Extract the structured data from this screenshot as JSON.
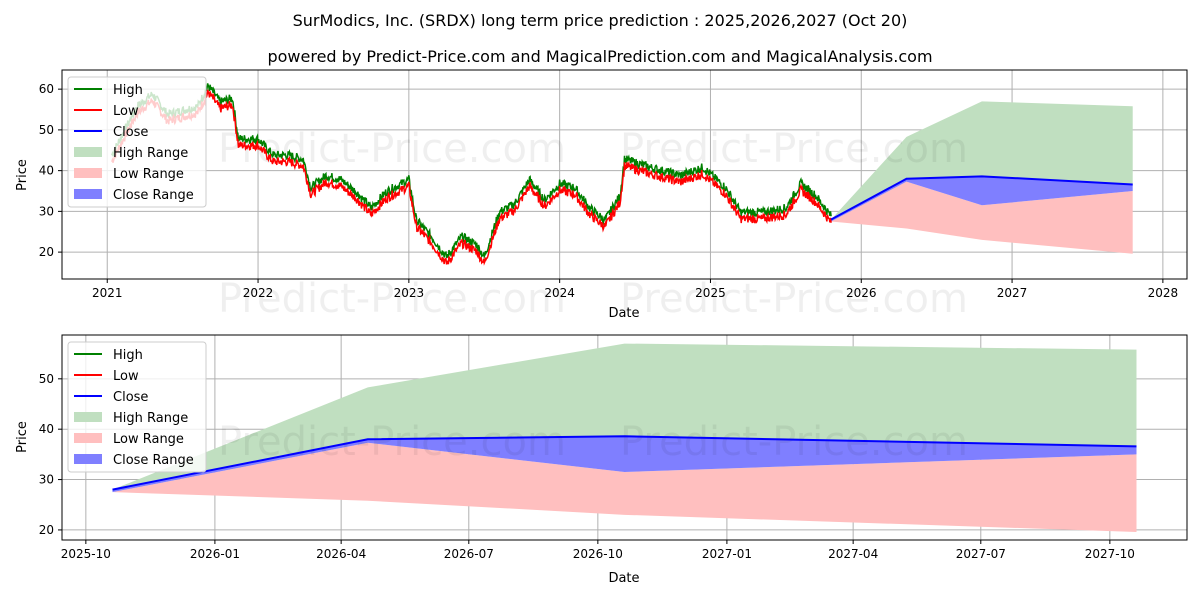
{
  "title": "SurModics, Inc. (SRDX) long term price prediction : 2025,2026,2027 (Oct 20)",
  "subtitle": "powered by Predict-Price.com and MagicalPrediction.com and MagicalAnalysis.com",
  "watermark": "Predict-Price.com",
  "colors": {
    "high": "#008000",
    "low": "#ff0000",
    "close": "#0000ff",
    "high_range": "#c0dfc0",
    "low_range": "#ffbfbf",
    "close_range": "#7f7fff"
  },
  "chart_data": [
    {
      "type": "line",
      "xlabel": "Date",
      "ylabel": "Price",
      "xlim": [
        2020.7,
        2028.16
      ],
      "ylim": [
        13.4,
        64.7
      ],
      "grid": true,
      "legend_position": "top-left",
      "xticks": [
        {
          "v": 2021,
          "label": "2021"
        },
        {
          "v": 2022,
          "label": "2022"
        },
        {
          "v": 2023,
          "label": "2023"
        },
        {
          "v": 2024,
          "label": "2024"
        },
        {
          "v": 2025,
          "label": "2025"
        },
        {
          "v": 2026,
          "label": "2026"
        },
        {
          "v": 2027,
          "label": "2027"
        },
        {
          "v": 2028,
          "label": "2028"
        }
      ],
      "yticks": [
        20,
        30,
        40,
        50,
        60
      ],
      "legend": [
        "High",
        "Low",
        "Close",
        "High Range",
        "Low Range",
        "Close Range"
      ],
      "history_close": [
        [
          2021.03,
          43
        ],
        [
          2021.1,
          48
        ],
        [
          2021.2,
          55
        ],
        [
          2021.3,
          58
        ],
        [
          2021.4,
          53
        ],
        [
          2021.5,
          54
        ],
        [
          2021.6,
          55
        ],
        [
          2021.67,
          60
        ],
        [
          2021.75,
          56
        ],
        [
          2021.83,
          57
        ],
        [
          2021.87,
          47
        ],
        [
          2022.0,
          47
        ],
        [
          2022.1,
          43
        ],
        [
          2022.2,
          43
        ],
        [
          2022.3,
          42
        ],
        [
          2022.35,
          35
        ],
        [
          2022.45,
          38
        ],
        [
          2022.55,
          37
        ],
        [
          2022.65,
          34
        ],
        [
          2022.75,
          30
        ],
        [
          2022.85,
          34
        ],
        [
          2022.95,
          36
        ],
        [
          2023.0,
          37
        ],
        [
          2023.05,
          27
        ],
        [
          2023.15,
          23
        ],
        [
          2023.25,
          18
        ],
        [
          2023.35,
          23
        ],
        [
          2023.45,
          21
        ],
        [
          2023.5,
          18
        ],
        [
          2023.6,
          29
        ],
        [
          2023.7,
          31
        ],
        [
          2023.8,
          37
        ],
        [
          2023.9,
          32
        ],
        [
          2024.0,
          36
        ],
        [
          2024.1,
          35
        ],
        [
          2024.2,
          30
        ],
        [
          2024.3,
          27
        ],
        [
          2024.4,
          33
        ],
        [
          2024.43,
          42
        ],
        [
          2024.6,
          40
        ],
        [
          2024.8,
          38
        ],
        [
          2024.95,
          40
        ],
        [
          2025.1,
          35
        ],
        [
          2025.2,
          29
        ],
        [
          2025.35,
          29
        ],
        [
          2025.5,
          30
        ],
        [
          2025.6,
          36
        ],
        [
          2025.7,
          33
        ],
        [
          2025.8,
          28
        ]
      ],
      "forecast": [
        {
          "x": 2025.8,
          "high": 28,
          "low": 27.5,
          "close": 28,
          "close_low": 27.5
        },
        {
          "x": 2026.3,
          "high": 48.3,
          "low": 25.8,
          "close": 38,
          "close_low": 37.3
        },
        {
          "x": 2026.8,
          "high": 57,
          "low": 23,
          "close": 38.6,
          "close_low": 31.5
        },
        {
          "x": 2027.8,
          "high": 55.8,
          "low": 19.6,
          "close": 36.6,
          "close_low": 35
        }
      ]
    },
    {
      "type": "line",
      "xlabel": "Date",
      "ylabel": "Price",
      "xlim_days_from_2025_10_01": [
        -17,
        785
      ],
      "ylim": [
        18.0,
        58.7
      ],
      "grid": true,
      "legend_position": "top-left",
      "xticks": [
        {
          "v": 0,
          "label": "2025-10"
        },
        {
          "v": 92,
          "label": "2026-01"
        },
        {
          "v": 182,
          "label": "2026-04"
        },
        {
          "v": 273,
          "label": "2026-07"
        },
        {
          "v": 365,
          "label": "2026-10"
        },
        {
          "v": 457,
          "label": "2027-01"
        },
        {
          "v": 547,
          "label": "2027-04"
        },
        {
          "v": 638,
          "label": "2027-07"
        },
        {
          "v": 730,
          "label": "2027-10"
        }
      ],
      "yticks": [
        20,
        30,
        40,
        50
      ],
      "legend": [
        "High",
        "Low",
        "Close",
        "High Range",
        "Low Range",
        "Close Range"
      ],
      "forecast": [
        {
          "day": 19,
          "high": 28,
          "low": 27.5,
          "close": 28,
          "close_low": 27.5
        },
        {
          "day": 201,
          "high": 48.3,
          "low": 25.8,
          "close": 38,
          "close_low": 37.3
        },
        {
          "day": 384,
          "high": 57,
          "low": 23,
          "close": 38.6,
          "close_low": 31.5
        },
        {
          "day": 749,
          "high": 55.8,
          "low": 19.6,
          "close": 36.6,
          "close_low": 35
        }
      ]
    }
  ]
}
